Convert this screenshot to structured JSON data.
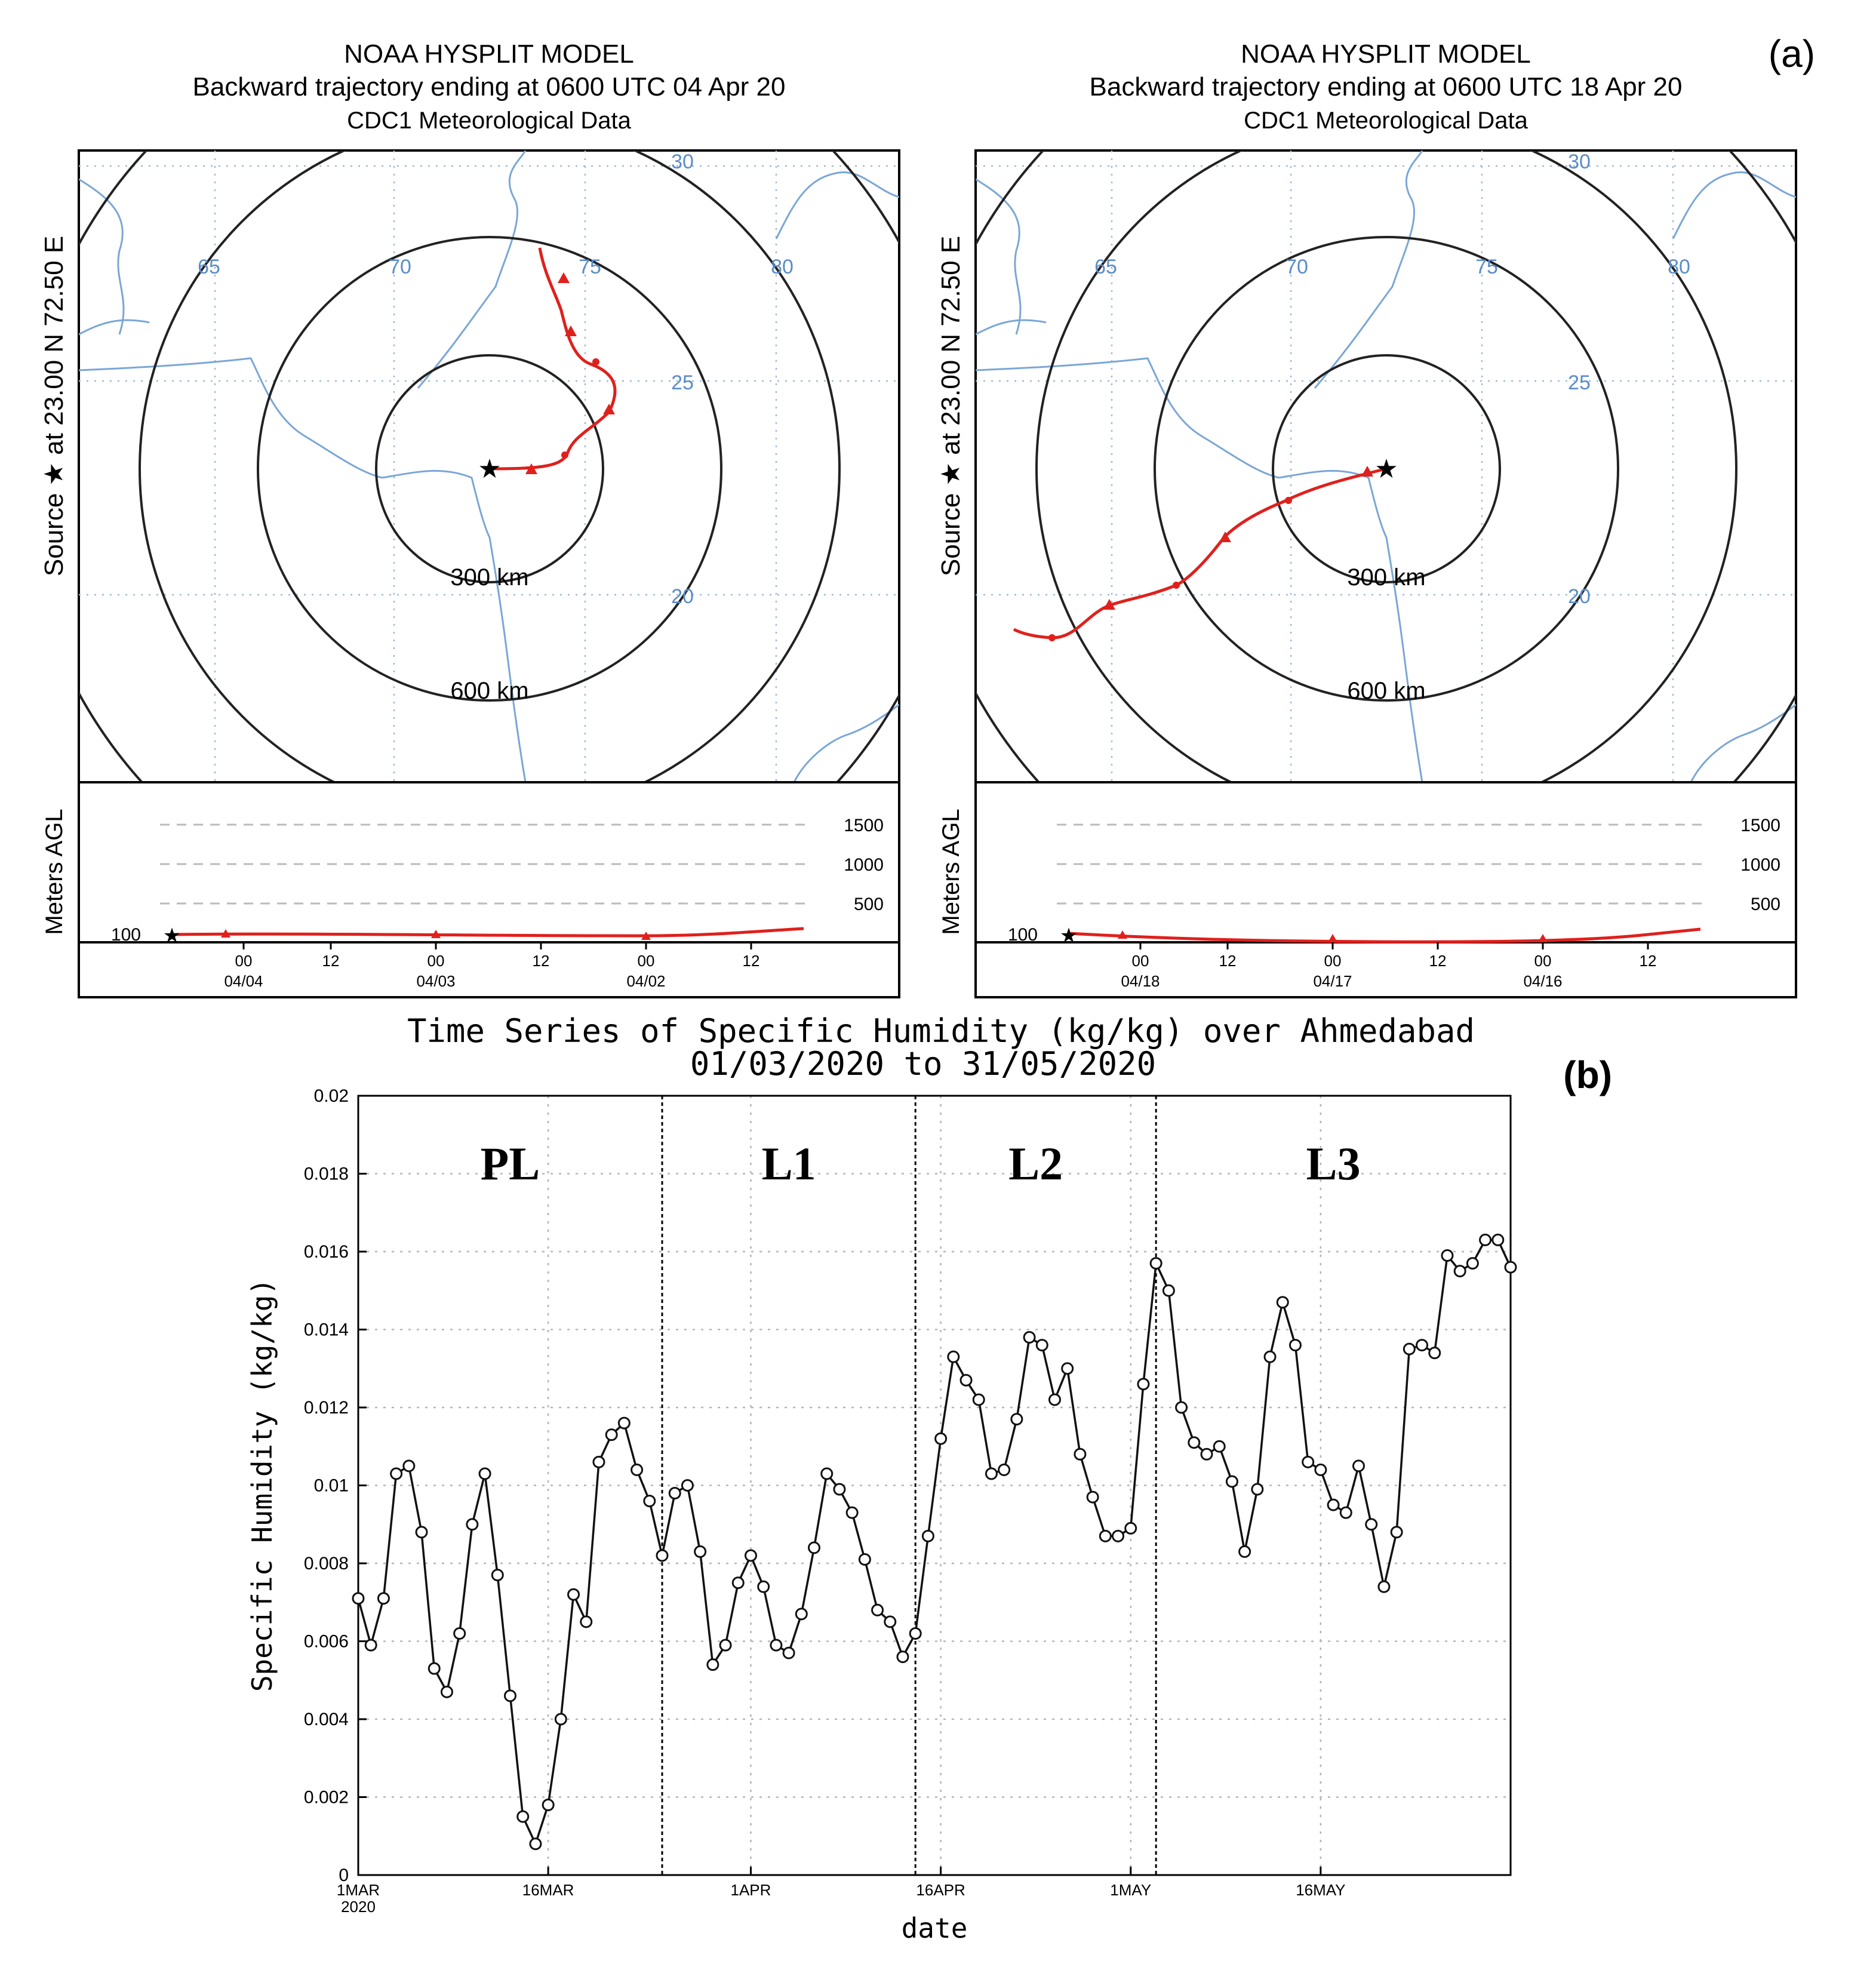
{
  "figure_labels": {
    "a": "(a)",
    "b": "(b)"
  },
  "panel_left": {
    "title_lines": [
      "NOAA HYSPLIT MODEL",
      "Backward trajectory ending at 0600 UTC 04 Apr 20",
      "CDC1 Meteorological Data"
    ],
    "source_label": "Source ★ at 23.00 N 72.50 E",
    "ring_labels": [
      "300 km",
      "600 km"
    ],
    "lon_labels": [
      "65",
      "70",
      "75",
      "80"
    ],
    "lat_labels": [
      "30",
      "25",
      "20"
    ],
    "height_axis_label": "Meters AGL",
    "height_levels": [
      "1500",
      "1000",
      "500"
    ],
    "start_height": "100",
    "time_ticks": [
      "00",
      "12",
      "00",
      "12",
      "00",
      "12"
    ],
    "date_ticks": [
      "04/04",
      "04/03",
      "04/02"
    ]
  },
  "panel_right": {
    "title_lines": [
      "NOAA HYSPLIT MODEL",
      "Backward trajectory ending at 0600 UTC 18 Apr 20",
      "CDC1 Meteorological Data"
    ],
    "source_label": "Source ★ at 23.00 N 72.50 E",
    "ring_labels": [
      "300 km",
      "600 km"
    ],
    "lon_labels": [
      "65",
      "70",
      "75",
      "80"
    ],
    "lat_labels": [
      "30",
      "25",
      "20"
    ],
    "height_axis_label": "Meters AGL",
    "height_levels": [
      "1500",
      "1000",
      "500"
    ],
    "start_height": "100",
    "time_ticks": [
      "00",
      "12",
      "00",
      "12",
      "00",
      "12"
    ],
    "date_ticks": [
      "04/18",
      "04/17",
      "04/16"
    ]
  },
  "chart_data": {
    "type": "line",
    "title": "Time Series of Specific Humidity (kg/kg) over Ahmedabad",
    "subtitle": "01/03/2020 to 31/05/2020",
    "xlabel": "date",
    "ylabel": "Specific Humidity (kg/kg)",
    "ylim": [
      0,
      0.02
    ],
    "yticks": [
      "0",
      "0.002",
      "0.004",
      "0.006",
      "0.008",
      "0.01",
      "0.012",
      "0.014",
      "0.016",
      "0.018",
      "0.02"
    ],
    "xlim_days": [
      0,
      91
    ],
    "xticks": [
      {
        "day": 0,
        "label": "1MAR",
        "sub": "2020"
      },
      {
        "day": 15,
        "label": "16MAR",
        "sub": ""
      },
      {
        "day": 31,
        "label": "1APR",
        "sub": ""
      },
      {
        "day": 46,
        "label": "16APR",
        "sub": ""
      },
      {
        "day": 61,
        "label": "1MAY",
        "sub": ""
      },
      {
        "day": 76,
        "label": "16MAY",
        "sub": ""
      }
    ],
    "periods": [
      {
        "label": "PL",
        "start": 0,
        "end": 24
      },
      {
        "label": "L1",
        "start": 24,
        "end": 44
      },
      {
        "label": "L2",
        "start": 44,
        "end": 63
      },
      {
        "label": "L3",
        "start": 63,
        "end": 91
      }
    ],
    "series": [
      {
        "name": "Specific Humidity",
        "x": [
          0,
          1,
          2,
          3,
          4,
          5,
          6,
          7,
          8,
          9,
          10,
          11,
          12,
          13,
          14,
          15,
          16,
          17,
          18,
          19,
          20,
          21,
          22,
          23,
          24,
          25,
          26,
          27,
          28,
          29,
          30,
          31,
          32,
          33,
          34,
          35,
          36,
          37,
          38,
          39,
          40,
          41,
          42,
          43,
          44,
          45,
          46,
          47,
          48,
          49,
          50,
          51,
          52,
          53,
          54,
          55,
          56,
          57,
          58,
          59,
          60,
          61,
          62,
          63,
          64,
          65,
          66,
          67,
          68,
          69,
          70,
          71,
          72,
          73,
          74,
          75,
          76,
          77,
          78,
          79,
          80,
          81,
          82,
          83,
          84,
          85,
          86,
          87,
          88,
          89,
          90,
          91
        ],
        "values": [
          0.0071,
          0.0059,
          0.0071,
          0.0103,
          0.0105,
          0.0088,
          0.0053,
          0.0047,
          0.0062,
          0.009,
          0.0103,
          0.0077,
          0.0046,
          0.0015,
          0.0008,
          0.0018,
          0.004,
          0.0072,
          0.0065,
          0.0106,
          0.0113,
          0.0116,
          0.0104,
          0.0096,
          0.0082,
          0.0098,
          0.01,
          0.0083,
          0.0054,
          0.0059,
          0.0075,
          0.0082,
          0.0074,
          0.0059,
          0.0057,
          0.0067,
          0.0084,
          0.0103,
          0.0099,
          0.0093,
          0.0081,
          0.0068,
          0.0065,
          0.0056,
          0.0062,
          0.0087,
          0.0112,
          0.0133,
          0.0127,
          0.0122,
          0.0103,
          0.0104,
          0.0117,
          0.0138,
          0.0136,
          0.0122,
          0.013,
          0.0108,
          0.0097,
          0.0087,
          0.0087,
          0.0089,
          0.0126,
          0.0157,
          0.015,
          0.012,
          0.0111,
          0.0108,
          0.011,
          0.0101,
          0.0083,
          0.0099,
          0.0133,
          0.0147,
          0.0136,
          0.0106,
          0.0104,
          0.0095,
          0.0093,
          0.0105,
          0.009,
          0.0074,
          0.0088,
          0.0135,
          0.0136,
          0.0134,
          0.0159,
          0.0155,
          0.0157,
          0.0163,
          0.0163,
          0.0156
        ]
      }
    ]
  }
}
